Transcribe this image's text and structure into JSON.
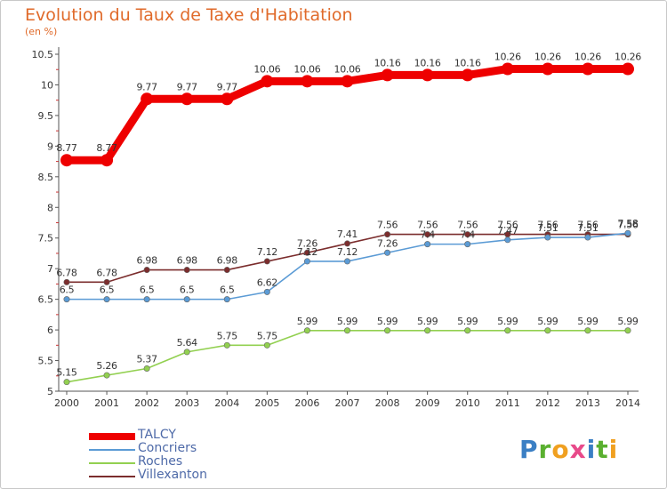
{
  "header": {
    "title": "Evolution du Taux de Taxe d'Habitation",
    "subtitle": "(en %)"
  },
  "logo": {
    "letters": [
      "P",
      "r",
      "o",
      "x",
      "i",
      "t",
      "i"
    ],
    "colors": [
      "#3a7fc4",
      "#5ab030",
      "#f0a020",
      "#e84a8a",
      "#3a7fc4",
      "#5ab030",
      "#f0a020"
    ]
  },
  "chart_data": {
    "type": "line",
    "x": [
      "2000",
      "2001",
      "2002",
      "2003",
      "2004",
      "2005",
      "2006",
      "2007",
      "2008",
      "2009",
      "2010",
      "2011",
      "2012",
      "2013",
      "2014"
    ],
    "ylim": [
      5,
      10.5
    ],
    "yticks": [
      "5",
      "5.5",
      "6",
      "6.5",
      "7",
      "7.5",
      "8",
      "8.5",
      "9",
      "9.5",
      "10",
      "10.5"
    ],
    "grid": false,
    "legend_position": "bottom-left",
    "series": [
      {
        "name": "TALCY",
        "color": "#ee0000",
        "emphasis": true,
        "values": [
          8.77,
          8.77,
          9.77,
          9.77,
          9.77,
          10.06,
          10.06,
          10.06,
          10.16,
          10.16,
          10.16,
          10.26,
          10.26,
          10.26,
          10.26
        ],
        "labels": [
          "8.77",
          "8.77",
          "9.77",
          "9.77",
          "9.77",
          "10.06",
          "10.06",
          "10.06",
          "10.16",
          "10.16",
          "10.16",
          "10.26",
          "10.26",
          "10.26",
          "10.26"
        ]
      },
      {
        "name": "Concriers",
        "color": "#5b9bd5",
        "values": [
          6.5,
          6.5,
          6.5,
          6.5,
          6.5,
          6.62,
          7.12,
          7.12,
          7.26,
          7.4,
          7.4,
          7.47,
          7.51,
          7.51,
          7.58
        ],
        "labels": [
          "6.5",
          "6.5",
          "6.5",
          "6.5",
          "6.5",
          "6.62",
          "7.12",
          "7.12",
          "7.26",
          "7.4",
          "7.4",
          "7.47",
          "7.51",
          "7.51",
          "7.58"
        ]
      },
      {
        "name": "Roches",
        "color": "#92d050",
        "values": [
          5.15,
          5.26,
          5.37,
          5.64,
          5.75,
          5.75,
          5.99,
          5.99,
          5.99,
          5.99,
          5.99,
          5.99,
          5.99,
          5.99,
          5.99
        ],
        "labels": [
          "5.15",
          "5.26",
          "5.37",
          "5.64",
          "5.75",
          "5.75",
          "5.99",
          "5.99",
          "5.99",
          "5.99",
          "5.99",
          "5.99",
          "5.99",
          "5.99",
          "5.99"
        ]
      },
      {
        "name": "Villexanton",
        "color": "#7b2d2d",
        "values": [
          6.78,
          6.78,
          6.98,
          6.98,
          6.98,
          7.12,
          7.26,
          7.41,
          7.56,
          7.56,
          7.56,
          7.56,
          7.56,
          7.56,
          7.56
        ],
        "labels": [
          "6.78",
          "6.78",
          "6.98",
          "6.98",
          "6.98",
          "7.12",
          "7.26",
          "7.41",
          "7.56",
          "7.56",
          "7.56",
          "7.56",
          "7.56",
          "7.56",
          "7.56"
        ]
      }
    ]
  }
}
